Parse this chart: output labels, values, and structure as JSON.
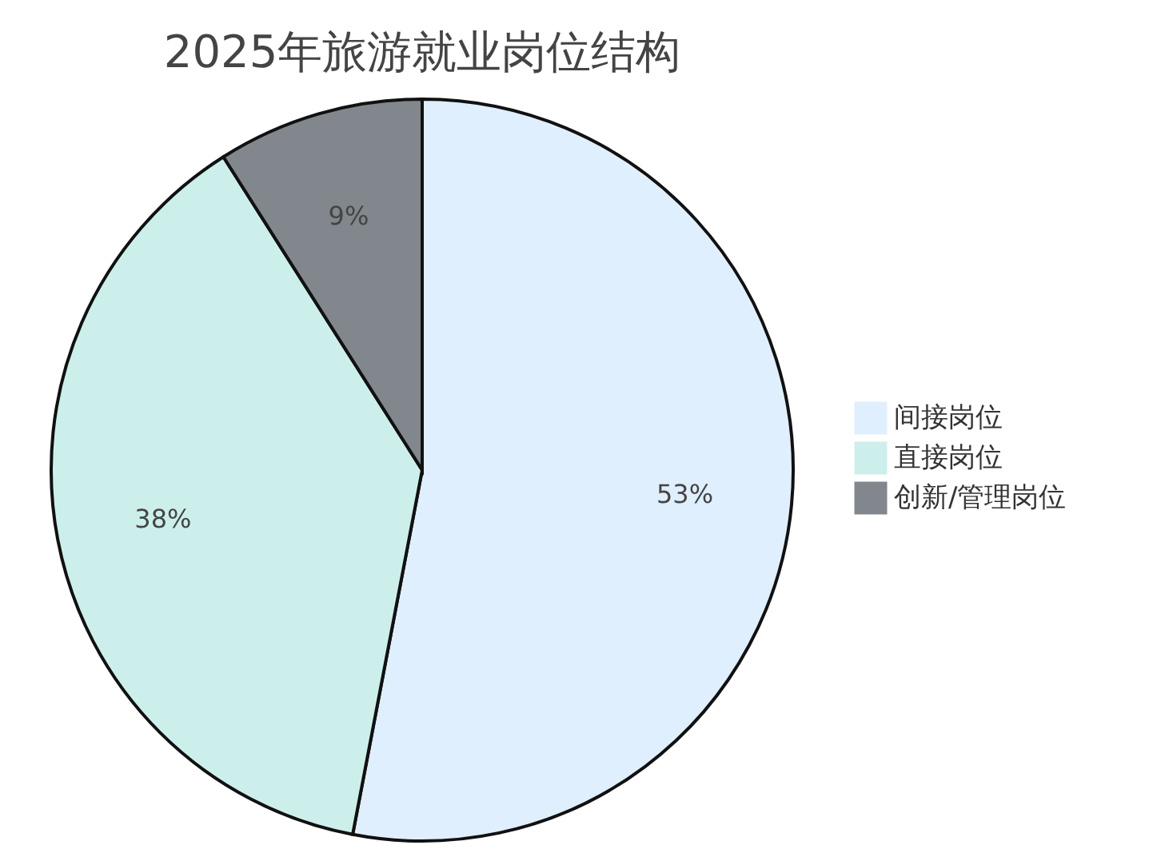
{
  "chart_data": {
    "type": "pie",
    "title": "2025年旅游就业岗位结构",
    "categories": [
      "间接岗位",
      "直接岗位",
      "创新/管理岗位"
    ],
    "values": [
      53,
      38,
      9
    ],
    "colors": [
      "#e0effe",
      "#cdefec",
      "#82878d"
    ],
    "value_labels": [
      "53%",
      "38%",
      "9%"
    ],
    "legend": "right"
  }
}
